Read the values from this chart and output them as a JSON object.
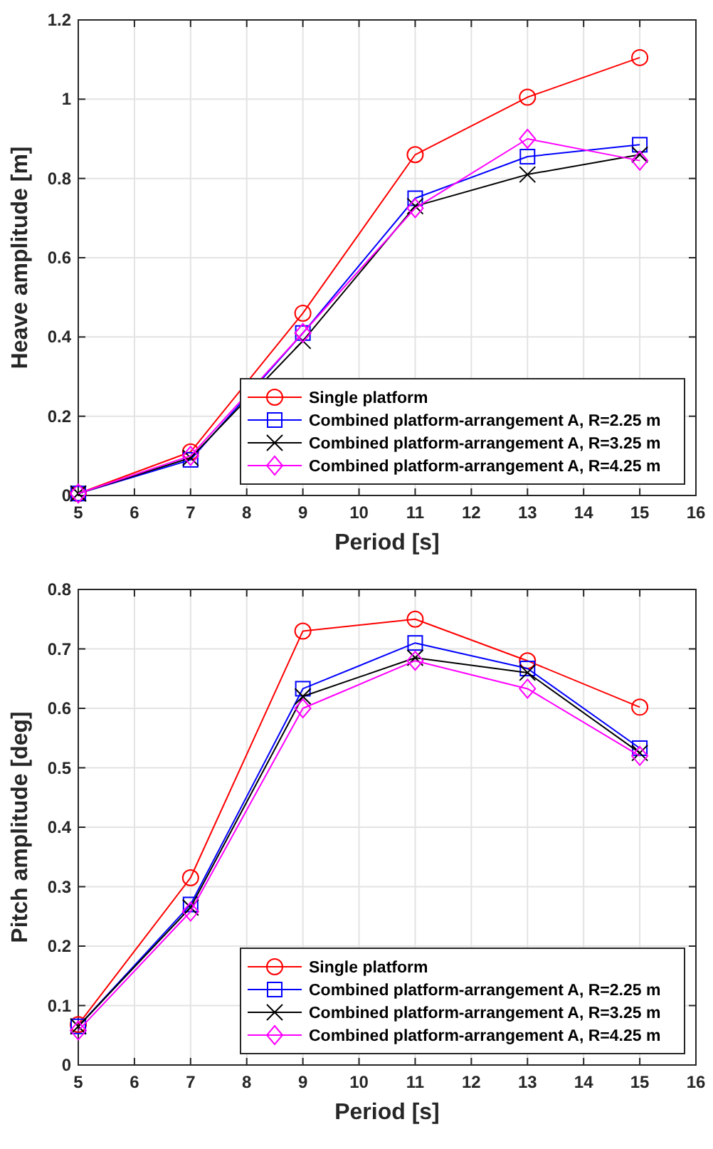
{
  "chart_data": [
    {
      "type": "line",
      "xlabel": "Period [s]",
      "ylabel": "Heave amplitude [m]",
      "x": [
        5,
        7,
        9,
        11,
        13,
        15
      ],
      "xlim": [
        5,
        16
      ],
      "xticks": [
        5,
        6,
        7,
        8,
        9,
        10,
        11,
        12,
        13,
        14,
        15,
        16
      ],
      "ylim": [
        0,
        1.2
      ],
      "yticks": [
        0,
        0.2,
        0.4,
        0.6,
        0.8,
        1,
        1.2
      ],
      "grid": true,
      "legend": "bottom right",
      "series": [
        {
          "name": "Single platform",
          "color": "#ff0000",
          "marker": "circle",
          "values": [
            0.005,
            0.11,
            0.46,
            0.86,
            1.005,
            1.105
          ]
        },
        {
          "name": "Combined platform-arrangement A, R=2.25 m",
          "color": "#0000ff",
          "marker": "square",
          "values": [
            0.005,
            0.09,
            0.41,
            0.75,
            0.855,
            0.885
          ]
        },
        {
          "name": "Combined platform-arrangement A, R=3.25 m",
          "color": "#000000",
          "marker": "cross",
          "values": [
            0.005,
            0.095,
            0.39,
            0.73,
            0.81,
            0.86
          ]
        },
        {
          "name": "Combined platform-arrangement A, R=4.25 m",
          "color": "#ff00ff",
          "marker": "diamond",
          "values": [
            0.005,
            0.1,
            0.41,
            0.725,
            0.9,
            0.845
          ]
        }
      ]
    },
    {
      "type": "line",
      "xlabel": "Period [s]",
      "ylabel": "Pitch amplitude [deg]",
      "x": [
        5,
        7,
        9,
        11,
        13,
        15
      ],
      "xlim": [
        5,
        16
      ],
      "xticks": [
        5,
        6,
        7,
        8,
        9,
        10,
        11,
        12,
        13,
        14,
        15,
        16
      ],
      "ylim": [
        0,
        0.8
      ],
      "yticks": [
        0,
        0.1,
        0.2,
        0.3,
        0.4,
        0.5,
        0.6,
        0.7,
        0.8
      ],
      "grid": true,
      "legend": "bottom right",
      "series": [
        {
          "name": "Single platform",
          "color": "#ff0000",
          "marker": "circle",
          "values": [
            0.068,
            0.315,
            0.73,
            0.75,
            0.68,
            0.602
          ]
        },
        {
          "name": "Combined platform-arrangement A, R=2.25 m",
          "color": "#0000ff",
          "marker": "square",
          "values": [
            0.065,
            0.27,
            0.633,
            0.71,
            0.667,
            0.533
          ]
        },
        {
          "name": "Combined platform-arrangement A, R=3.25 m",
          "color": "#000000",
          "marker": "cross",
          "values": [
            0.065,
            0.265,
            0.62,
            0.685,
            0.66,
            0.525
          ]
        },
        {
          "name": "Combined platform-arrangement A, R=4.25 m",
          "color": "#ff00ff",
          "marker": "diamond",
          "values": [
            0.058,
            0.258,
            0.6,
            0.68,
            0.633,
            0.52
          ]
        }
      ]
    }
  ]
}
